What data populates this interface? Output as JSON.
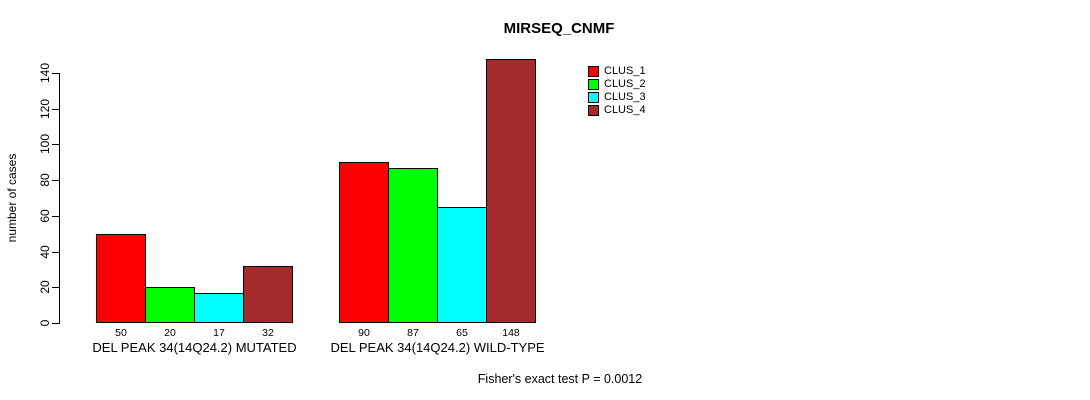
{
  "page": {
    "background": "#ffffff"
  },
  "chart_data": {
    "type": "bar",
    "title": "MIRSEQ_CNMF",
    "xlabel": "",
    "ylabel": "number of cases",
    "ylim": [
      0,
      140
    ],
    "yticks": [
      0,
      20,
      40,
      60,
      80,
      100,
      120,
      140
    ],
    "grid": false,
    "categories": [
      "DEL PEAK 34(14Q24.2) MUTATED",
      "DEL PEAK 34(14Q24.2) WILD-TYPE"
    ],
    "series": [
      {
        "name": "CLUS_1",
        "color": "#FF0000",
        "values": [
          50,
          90
        ]
      },
      {
        "name": "CLUS_2",
        "color": "#00FF00",
        "values": [
          20,
          87
        ]
      },
      {
        "name": "CLUS_3",
        "color": "#00FFFF",
        "values": [
          17,
          65
        ]
      },
      {
        "name": "CLUS_4",
        "color": "#A52A2A",
        "values": [
          32,
          148
        ]
      }
    ],
    "bar_value_labels": [
      [
        50,
        20,
        17,
        32
      ],
      [
        90,
        87,
        65,
        148
      ]
    ],
    "legend": {
      "position": "top-right",
      "entries": [
        "CLUS_1",
        "CLUS_2",
        "CLUS_3",
        "CLUS_4"
      ]
    },
    "annotation": "Fisher's exact test P = 0.0012"
  }
}
